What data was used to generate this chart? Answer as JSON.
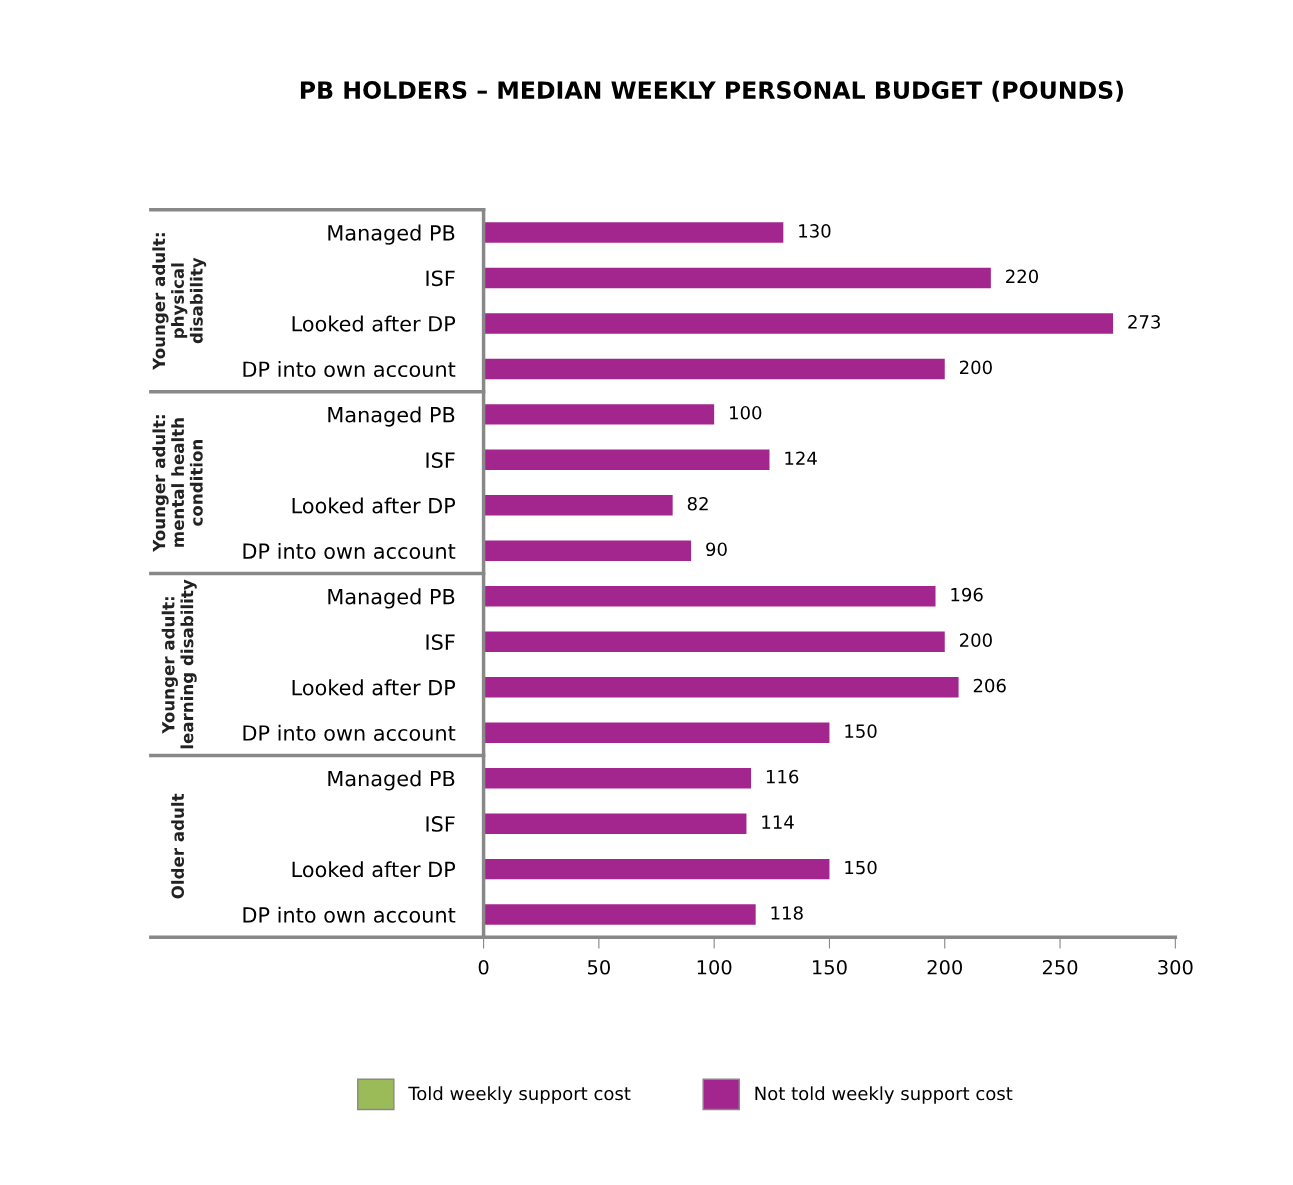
{
  "chart_data": {
    "type": "bar",
    "orientation": "horizontal",
    "title": "PB HOLDERS – MEDIAN WEEKLY PERSONAL BUDGET (POUNDS)",
    "categories": [
      "Managed PB",
      "ISF",
      "Looked after DP",
      "DP into own account",
      "Managed PB",
      "ISF",
      "Looked after DP",
      "DP into own account",
      "Managed PB",
      "ISF",
      "Looked after DP",
      "DP into own account",
      "Managed PB",
      "ISF",
      "Looked after DP",
      "DP into own account"
    ],
    "series": [
      {
        "name": "Told weekly support cost",
        "color": "#9bbb59",
        "values": [
          null,
          null,
          null,
          null,
          null,
          null,
          null,
          null,
          null,
          null,
          null,
          null,
          null,
          null,
          null,
          null
        ]
      },
      {
        "name": "Not told weekly support cost",
        "color": "#a3268f",
        "values": [
          130,
          220,
          273,
          200,
          100,
          124,
          82,
          90,
          196,
          200,
          206,
          150,
          116,
          114,
          150,
          118
        ]
      }
    ],
    "annotations": [
      "Younger adult:\nphysical\ndisability",
      "Younger adult:\nmental health\ncondition",
      "Younger adult:\nlearning disability",
      "Older adult"
    ],
    "xlim": [
      0,
      300
    ],
    "xticks": [
      0,
      50,
      100,
      150,
      200,
      250,
      300
    ],
    "data_labels": true,
    "grid": false,
    "legend": "bottom"
  }
}
